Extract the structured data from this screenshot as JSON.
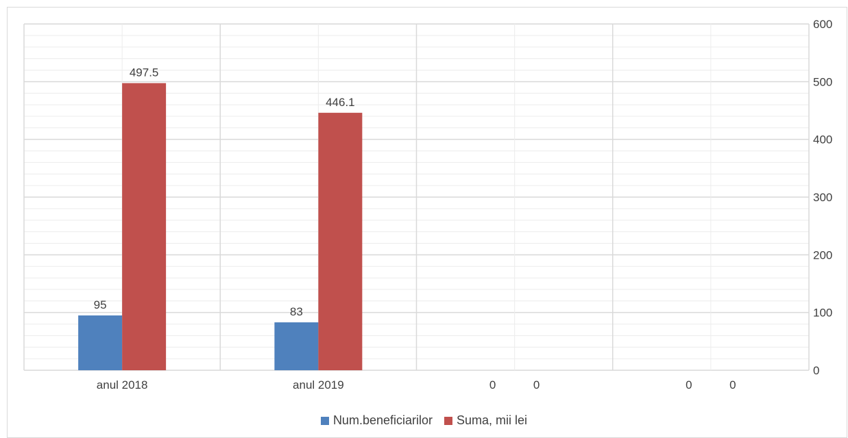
{
  "chart_data": {
    "type": "bar",
    "title": "",
    "xlabel": "",
    "ylabel": "",
    "categories": [
      "anul 2018",
      "anul 2019",
      "0",
      "0"
    ],
    "series": [
      {
        "name": "Num.beneficiarilor",
        "color": "#4f81bd",
        "values": [
          95,
          83,
          0,
          0
        ],
        "labels": [
          "95",
          "83",
          "",
          ""
        ]
      },
      {
        "name": "Suma, mii lei",
        "color": "#c0504d",
        "values": [
          497.5,
          446.1,
          0,
          0
        ],
        "labels": [
          "497.5",
          "446.1",
          "",
          ""
        ]
      }
    ],
    "value_labels_empty": [
      "0",
      "0",
      "0",
      "0"
    ],
    "ylim": [
      0,
      600
    ],
    "yticks": [
      0,
      100,
      200,
      300,
      400,
      500,
      600
    ],
    "y_axis_position": "right",
    "grid": true,
    "legend_position": "bottom-center"
  }
}
